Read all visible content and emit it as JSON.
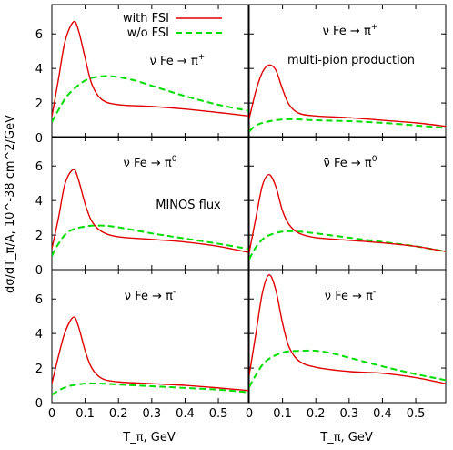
{
  "chart_data": {
    "type": "line",
    "layout": "3 rows x 2 columns, shared axes",
    "ylabel": "dσ/dT_π/A, 10^-38 cm^2/GeV",
    "xlabel": "T_π, GeV",
    "xlim": [
      0,
      0.59
    ],
    "ylim": [
      0,
      7.7
    ],
    "x_ticks": [
      0,
      0.1,
      0.2,
      0.3,
      0.4,
      0.5
    ],
    "x_tick_labels": [
      "0",
      "0.1",
      "0.2",
      "0.3",
      "0.4",
      "0.5"
    ],
    "y_ticks": [
      0,
      2,
      4,
      6
    ],
    "y_tick_labels": [
      "0",
      "2",
      "4",
      "6"
    ],
    "grid": false,
    "legend": {
      "placement": "top of upper-left panel",
      "entries": [
        {
          "label": "with FSI",
          "color": "#e00000",
          "dash": "solid"
        },
        {
          "label": "w/o FSI",
          "color": "#00dd00",
          "dash": "dashed"
        }
      ]
    },
    "annotations": [
      "multi-pion production",
      "MINOS flux"
    ],
    "panels": [
      {
        "title_pre": "ν Fe → π",
        "title_sup": "+",
        "series": [
          {
            "name": "with FSI",
            "x": [
              0,
              0.02,
              0.04,
              0.065,
              0.08,
              0.1,
              0.12,
              0.15,
              0.2,
              0.3,
              0.4,
              0.5,
              0.59
            ],
            "y": [
              1.2,
              3.4,
              5.6,
              6.7,
              6.2,
              4.6,
              3.1,
              2.2,
              1.9,
              1.8,
              1.65,
              1.45,
              1.25
            ]
          },
          {
            "name": "w/o FSI",
            "x": [
              0,
              0.02,
              0.05,
              0.1,
              0.15,
              0.2,
              0.25,
              0.3,
              0.4,
              0.5,
              0.59
            ],
            "y": [
              0.9,
              1.6,
              2.5,
              3.3,
              3.55,
              3.5,
              3.3,
              3.0,
              2.4,
              1.9,
              1.55
            ]
          }
        ]
      },
      {
        "title_pre": "ν̄ Fe → π",
        "title_sup": "+",
        "series": [
          {
            "name": "with FSI",
            "x": [
              0,
              0.02,
              0.04,
              0.06,
              0.08,
              0.1,
              0.12,
              0.15,
              0.2,
              0.3,
              0.4,
              0.5,
              0.59
            ],
            "y": [
              1.1,
              2.7,
              3.8,
              4.2,
              3.9,
              2.8,
              1.9,
              1.4,
              1.25,
              1.15,
              1.0,
              0.85,
              0.65
            ]
          },
          {
            "name": "w/o FSI",
            "x": [
              0,
              0.02,
              0.05,
              0.1,
              0.15,
              0.2,
              0.3,
              0.4,
              0.5,
              0.59
            ],
            "y": [
              0.35,
              0.7,
              0.9,
              1.05,
              1.05,
              1.0,
              0.95,
              0.85,
              0.7,
              0.55
            ]
          }
        ]
      },
      {
        "title_pre": "ν Fe →  π",
        "title_sup": "0",
        "series": [
          {
            "name": "with FSI",
            "x": [
              0,
              0.02,
              0.04,
              0.065,
              0.08,
              0.1,
              0.12,
              0.15,
              0.2,
              0.3,
              0.4,
              0.5,
              0.59
            ],
            "y": [
              1.2,
              3.0,
              5.0,
              5.8,
              5.2,
              3.8,
              2.8,
              2.2,
              1.9,
              1.75,
              1.6,
              1.35,
              1.0
            ]
          },
          {
            "name": "w/o FSI",
            "x": [
              0,
              0.02,
              0.05,
              0.1,
              0.15,
              0.2,
              0.3,
              0.4,
              0.5,
              0.59
            ],
            "y": [
              0.8,
              1.5,
              2.2,
              2.5,
              2.55,
              2.45,
              2.1,
              1.8,
              1.5,
              1.2
            ]
          }
        ]
      },
      {
        "title_pre": "ν̄ Fe → π",
        "title_sup": "0",
        "series": [
          {
            "name": "with FSI",
            "x": [
              0,
              0.02,
              0.04,
              0.06,
              0.08,
              0.1,
              0.12,
              0.15,
              0.2,
              0.3,
              0.4,
              0.5,
              0.59
            ],
            "y": [
              1.0,
              3.0,
              4.9,
              5.5,
              4.8,
              3.4,
              2.6,
              2.1,
              1.85,
              1.7,
              1.55,
              1.35,
              1.05
            ]
          },
          {
            "name": "w/o FSI",
            "x": [
              0,
              0.02,
              0.05,
              0.1,
              0.15,
              0.2,
              0.3,
              0.4,
              0.5,
              0.59
            ],
            "y": [
              0.6,
              1.3,
              1.9,
              2.2,
              2.2,
              2.1,
              1.85,
              1.6,
              1.35,
              1.05
            ]
          }
        ]
      },
      {
        "title_pre": "ν Fe →  π",
        "title_sup": "-",
        "series": [
          {
            "name": "with FSI",
            "x": [
              0,
              0.02,
              0.04,
              0.065,
              0.08,
              0.1,
              0.12,
              0.15,
              0.2,
              0.3,
              0.4,
              0.5,
              0.59
            ],
            "y": [
              1.1,
              2.7,
              4.1,
              4.95,
              4.4,
              3.0,
              2.0,
              1.4,
              1.2,
              1.1,
              1.0,
              0.85,
              0.7
            ]
          },
          {
            "name": "w/o FSI",
            "x": [
              0,
              0.02,
              0.05,
              0.1,
              0.15,
              0.2,
              0.3,
              0.4,
              0.5,
              0.59
            ],
            "y": [
              0.45,
              0.7,
              0.95,
              1.1,
              1.1,
              1.05,
              0.95,
              0.85,
              0.75,
              0.6
            ]
          }
        ]
      },
      {
        "title_pre": "ν̄ Fe → π",
        "title_sup": "-",
        "series": [
          {
            "name": "with FSI",
            "x": [
              0,
              0.02,
              0.04,
              0.06,
              0.08,
              0.1,
              0.12,
              0.15,
              0.2,
              0.3,
              0.4,
              0.5,
              0.59
            ],
            "y": [
              1.6,
              4.0,
              6.4,
              7.4,
              6.5,
              4.6,
              3.2,
              2.4,
              2.05,
              1.8,
              1.7,
              1.45,
              1.1
            ]
          },
          {
            "name": "w/o FSI",
            "x": [
              0,
              0.02,
              0.05,
              0.1,
              0.15,
              0.2,
              0.25,
              0.3,
              0.4,
              0.5,
              0.59
            ],
            "y": [
              0.9,
              1.6,
              2.4,
              2.9,
              3.0,
              3.0,
              2.85,
              2.6,
              2.1,
              1.65,
              1.3
            ]
          }
        ]
      }
    ]
  }
}
